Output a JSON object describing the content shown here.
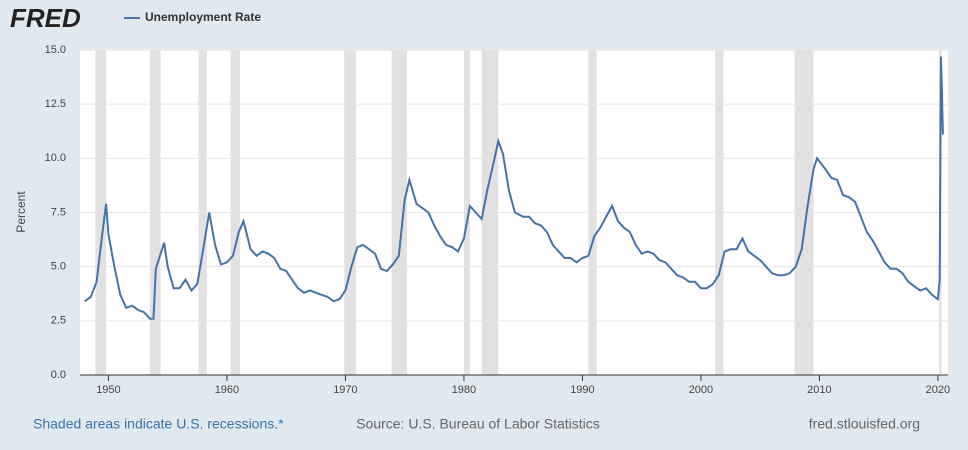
{
  "logo": "FRED",
  "chart_data": {
    "type": "line",
    "x": [
      1948.0,
      1948.5,
      1949.0,
      1949.5,
      1949.8,
      1950.0,
      1950.5,
      1951.0,
      1951.5,
      1952.0,
      1952.5,
      1953.0,
      1953.5,
      1953.8,
      1954.0,
      1954.7,
      1955.0,
      1955.5,
      1956.0,
      1956.5,
      1957.0,
      1957.5,
      1958.0,
      1958.5,
      1959.0,
      1959.5,
      1960.0,
      1960.5,
      1961.0,
      1961.4,
      1962.0,
      1962.5,
      1963.0,
      1963.5,
      1964.0,
      1964.5,
      1965.0,
      1965.5,
      1966.0,
      1966.5,
      1967.0,
      1967.5,
      1968.0,
      1968.5,
      1969.0,
      1969.5,
      1970.0,
      1970.5,
      1971.0,
      1971.5,
      1972.0,
      1972.5,
      1973.0,
      1973.5,
      1974.0,
      1974.5,
      1975.0,
      1975.4,
      1976.0,
      1976.5,
      1977.0,
      1977.5,
      1978.0,
      1978.5,
      1979.0,
      1979.5,
      1980.0,
      1980.5,
      1981.0,
      1981.5,
      1982.0,
      1982.5,
      1982.9,
      1983.3,
      1983.8,
      1984.3,
      1985.0,
      1985.5,
      1986.0,
      1986.5,
      1987.0,
      1987.5,
      1988.0,
      1988.5,
      1989.0,
      1989.5,
      1990.0,
      1990.5,
      1991.0,
      1991.5,
      1992.0,
      1992.5,
      1993.0,
      1993.5,
      1994.0,
      1994.5,
      1995.0,
      1995.5,
      1996.0,
      1996.5,
      1997.0,
      1997.5,
      1998.0,
      1998.5,
      1999.0,
      1999.5,
      2000.0,
      2000.5,
      2001.0,
      2001.5,
      2002.0,
      2002.5,
      2003.0,
      2003.5,
      2004.0,
      2004.5,
      2005.0,
      2005.5,
      2006.0,
      2006.5,
      2007.0,
      2007.5,
      2008.0,
      2008.5,
      2009.0,
      2009.5,
      2009.8,
      2010.5,
      2011.0,
      2011.5,
      2012.0,
      2012.5,
      2013.0,
      2013.5,
      2014.0,
      2014.5,
      2015.0,
      2015.5,
      2016.0,
      2016.5,
      2017.0,
      2017.5,
      2018.0,
      2018.5,
      2019.0,
      2019.5,
      2020.0,
      2020.15,
      2020.25,
      2020.33,
      2020.42
    ],
    "series": [
      {
        "name": "Unemployment Rate",
        "color": "#4572a7",
        "values": [
          3.4,
          3.6,
          4.3,
          6.6,
          7.9,
          6.5,
          5.0,
          3.7,
          3.1,
          3.2,
          3.0,
          2.9,
          2.6,
          2.6,
          4.9,
          6.1,
          5.0,
          4.0,
          4.0,
          4.4,
          3.9,
          4.2,
          5.8,
          7.5,
          6.0,
          5.1,
          5.2,
          5.5,
          6.6,
          7.1,
          5.8,
          5.5,
          5.7,
          5.6,
          5.4,
          4.9,
          4.8,
          4.4,
          4.0,
          3.8,
          3.9,
          3.8,
          3.7,
          3.6,
          3.4,
          3.5,
          3.9,
          5.0,
          5.9,
          6.0,
          5.8,
          5.6,
          4.9,
          4.8,
          5.1,
          5.5,
          8.1,
          9.0,
          7.9,
          7.7,
          7.5,
          6.9,
          6.4,
          6.0,
          5.9,
          5.7,
          6.3,
          7.8,
          7.5,
          7.2,
          8.6,
          9.8,
          10.8,
          10.2,
          8.5,
          7.5,
          7.3,
          7.3,
          7.0,
          6.9,
          6.6,
          6.0,
          5.7,
          5.4,
          5.4,
          5.2,
          5.4,
          5.5,
          6.4,
          6.8,
          7.3,
          7.8,
          7.1,
          6.8,
          6.6,
          6.0,
          5.6,
          5.7,
          5.6,
          5.3,
          5.2,
          4.9,
          4.6,
          4.5,
          4.3,
          4.3,
          4.0,
          4.0,
          4.2,
          4.6,
          5.7,
          5.8,
          5.8,
          6.3,
          5.7,
          5.5,
          5.3,
          5.0,
          4.7,
          4.6,
          4.6,
          4.7,
          5.0,
          5.8,
          7.8,
          9.5,
          10.0,
          9.5,
          9.1,
          9.0,
          8.3,
          8.2,
          8.0,
          7.3,
          6.6,
          6.2,
          5.7,
          5.2,
          4.9,
          4.9,
          4.7,
          4.3,
          4.1,
          3.9,
          4.0,
          3.7,
          3.5,
          4.4,
          14.7,
          13.3,
          11.1
        ]
      }
    ],
    "recessions": [
      [
        1948.9,
        1949.8
      ],
      [
        1953.5,
        1954.4
      ],
      [
        1957.6,
        1958.3
      ],
      [
        1960.3,
        1961.1
      ],
      [
        1969.9,
        1970.9
      ],
      [
        1973.9,
        1975.2
      ],
      [
        1980.0,
        1980.5
      ],
      [
        1981.5,
        1982.9
      ],
      [
        1990.5,
        1991.2
      ],
      [
        2001.2,
        2001.9
      ],
      [
        2007.9,
        2009.5
      ],
      [
        2020.1,
        2020.3
      ]
    ],
    "xlim": [
      1947.6,
      2020.85
    ],
    "xticks": [
      1950,
      1960,
      1970,
      1980,
      1990,
      2000,
      2010,
      2020
    ],
    "ylim": [
      0,
      15
    ],
    "yticks": [
      {
        "value": 0,
        "label": "0.0"
      },
      {
        "value": 2.5,
        "label": "2.5"
      },
      {
        "value": 5,
        "label": "5.0"
      },
      {
        "value": 7.5,
        "label": "7.5"
      },
      {
        "value": 10,
        "label": "10.0"
      },
      {
        "value": 12.5,
        "label": "12.5"
      },
      {
        "value": 15,
        "label": "15.0"
      }
    ],
    "ylabel": "Percent",
    "grid": true,
    "notes": [
      "Shaded areas indicate U.S. recessions.*",
      "Source: U.S. Bureau of Labor Statistics",
      "fred.stlouisfed.org"
    ]
  }
}
